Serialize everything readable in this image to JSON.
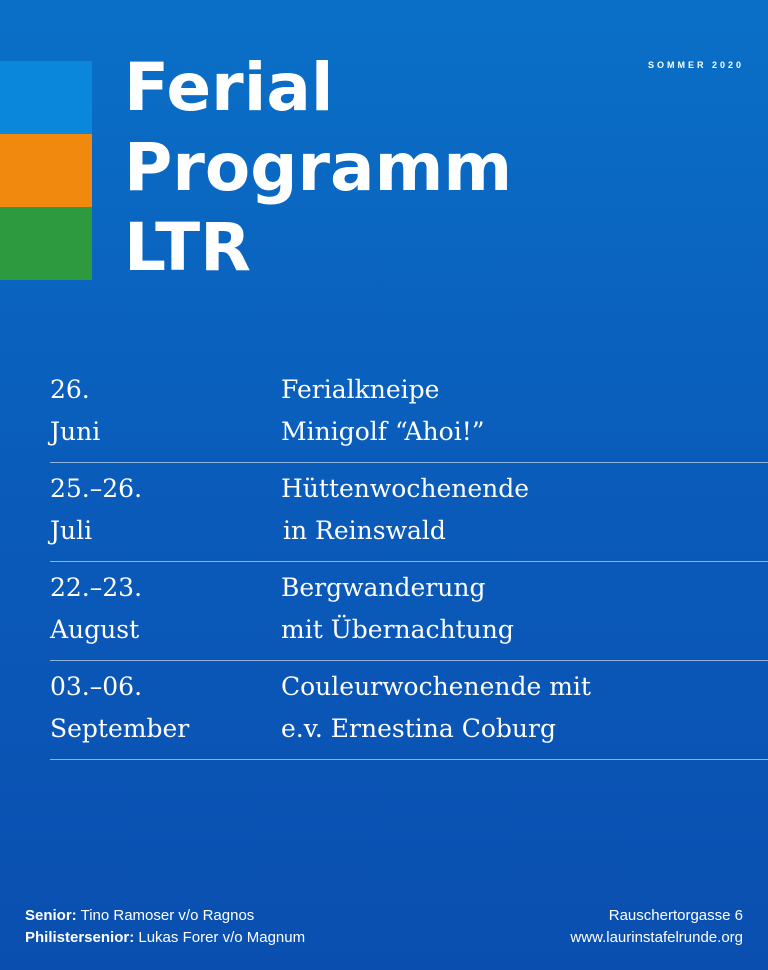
{
  "colors": {
    "background": "#0a5bba",
    "stripes": [
      "#0a86db",
      "#f0890d",
      "#2d9a3f"
    ],
    "text": "#ffffff"
  },
  "header": {
    "title_lines": [
      "Ferial",
      "Programm",
      "LTR"
    ],
    "season": "SOMMER 2020"
  },
  "events": [
    {
      "date": [
        "26.",
        "Juni"
      ],
      "title": [
        "Ferialkneipe",
        "Minigolf “Ahoi!”"
      ]
    },
    {
      "date": [
        "25.–26.",
        "Juli"
      ],
      "title": [
        "Hüttenwochenende",
        "in Reinswald"
      ]
    },
    {
      "date": [
        "22.–23.",
        "August"
      ],
      "title": [
        "Bergwanderung",
        "mit Übernachtung"
      ]
    },
    {
      "date": [
        "03.–06.",
        "September"
      ],
      "title": [
        "Couleurwochenende mit",
        "e.v. Ernestina Coburg"
      ]
    }
  ],
  "footer": {
    "senior_label": "Senior:",
    "senior_name": "Tino Ramoser v/o Ragnos",
    "philister_label": "Philistersenior:",
    "philister_name": "Lukas Forer v/o Magnum",
    "address": "Rauschertorgasse 6",
    "website": "www.laurinstafelrunde.org"
  }
}
